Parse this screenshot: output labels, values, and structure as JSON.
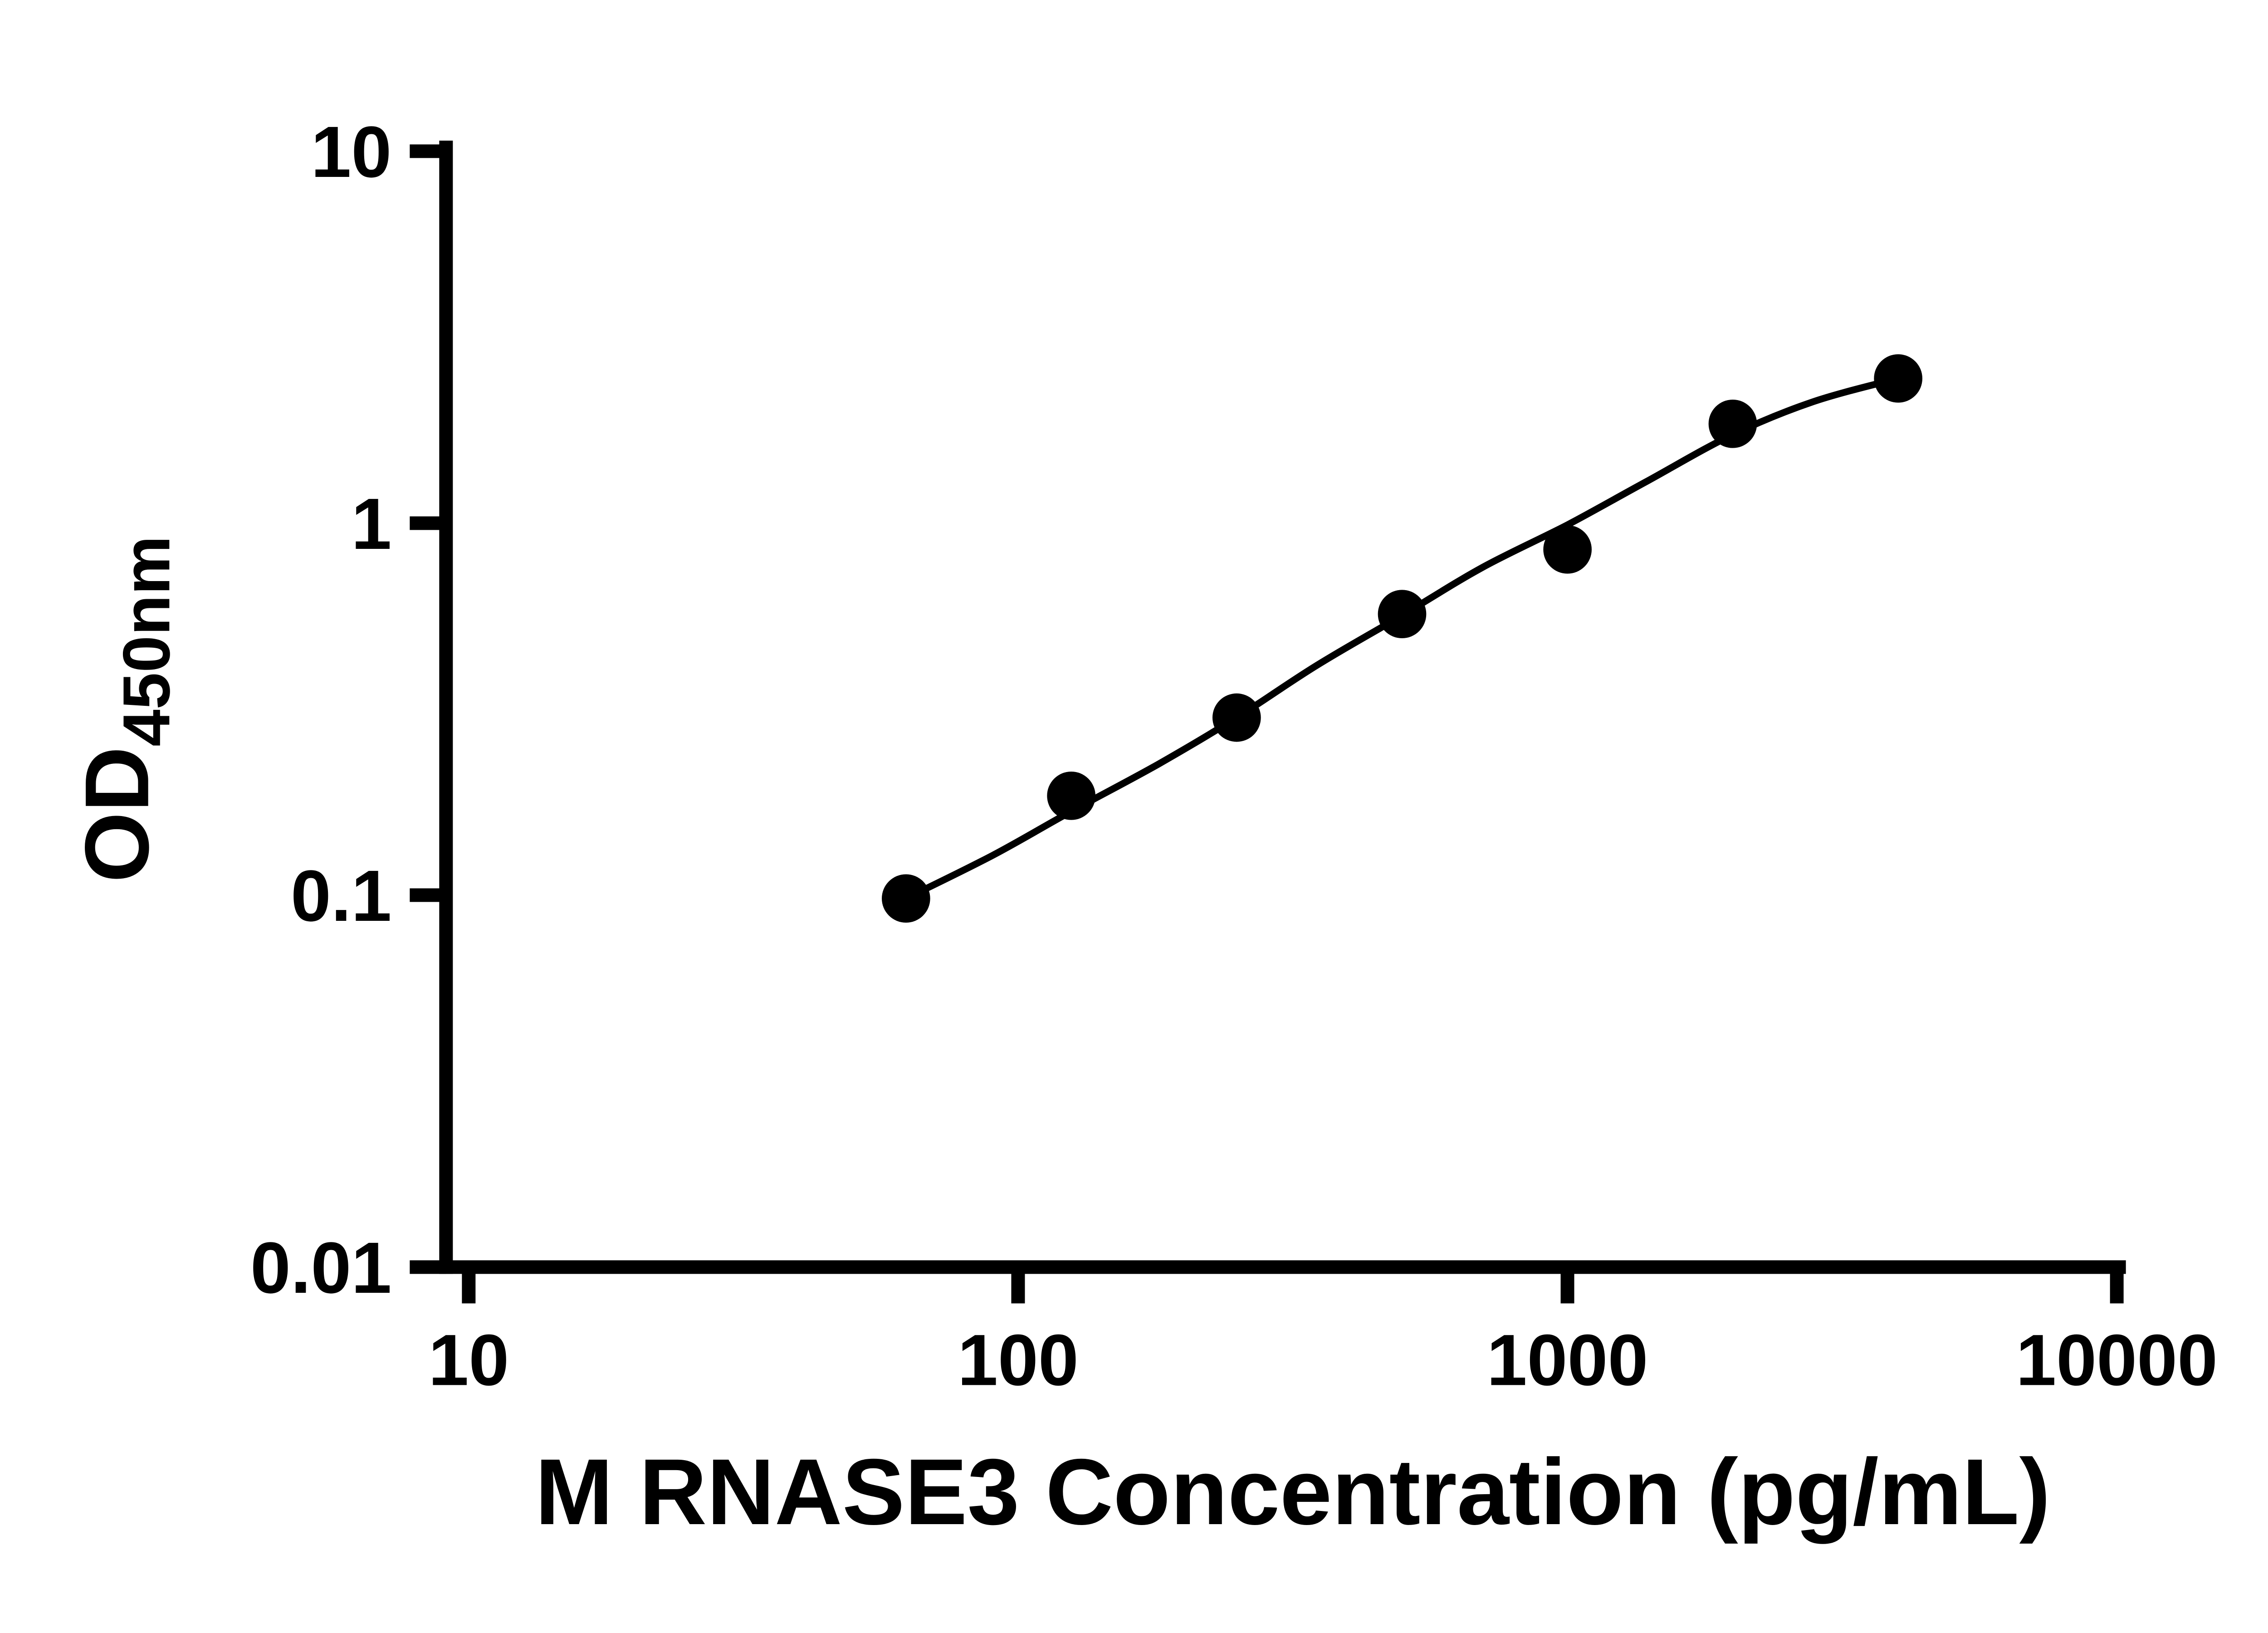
{
  "page": {
    "background_color": "#ffffff"
  },
  "chart_data": {
    "type": "scatter",
    "title": "",
    "xlabel": "M RNASE3 Concentration (pg/mL)",
    "ylabel_main": "OD",
    "ylabel_sub": "450nm",
    "x_scale": "log10",
    "y_scale": "log10",
    "xlim": [
      10,
      10000
    ],
    "ylim": [
      0.01,
      10
    ],
    "x_ticks": [
      10,
      100,
      1000,
      10000
    ],
    "x_tick_labels": [
      "10",
      "100",
      "1000",
      "10000"
    ],
    "y_ticks": [
      10,
      1,
      0.1,
      0.01
    ],
    "y_tick_labels": [
      "10",
      "1",
      "0.1",
      "0.01"
    ],
    "grid": false,
    "legend": "none",
    "axis_color": "#000000",
    "marker_color": "#000000",
    "line_color": "#000000",
    "points": [
      {
        "x": 62.5,
        "y": 0.098
      },
      {
        "x": 125,
        "y": 0.185
      },
      {
        "x": 250,
        "y": 0.3
      },
      {
        "x": 500,
        "y": 0.57
      },
      {
        "x": 1000,
        "y": 0.85
      },
      {
        "x": 2000,
        "y": 1.85
      },
      {
        "x": 4000,
        "y": 2.45
      }
    ],
    "fit_curve": [
      {
        "x": 62.5,
        "y": 0.098
      },
      {
        "x": 90,
        "y": 0.128
      },
      {
        "x": 125,
        "y": 0.168
      },
      {
        "x": 180,
        "y": 0.225
      },
      {
        "x": 250,
        "y": 0.3
      },
      {
        "x": 350,
        "y": 0.415
      },
      {
        "x": 500,
        "y": 0.565
      },
      {
        "x": 700,
        "y": 0.76
      },
      {
        "x": 1000,
        "y": 0.99
      },
      {
        "x": 1400,
        "y": 1.3
      },
      {
        "x": 2000,
        "y": 1.73
      },
      {
        "x": 2800,
        "y": 2.12
      },
      {
        "x": 4000,
        "y": 2.45
      }
    ]
  }
}
